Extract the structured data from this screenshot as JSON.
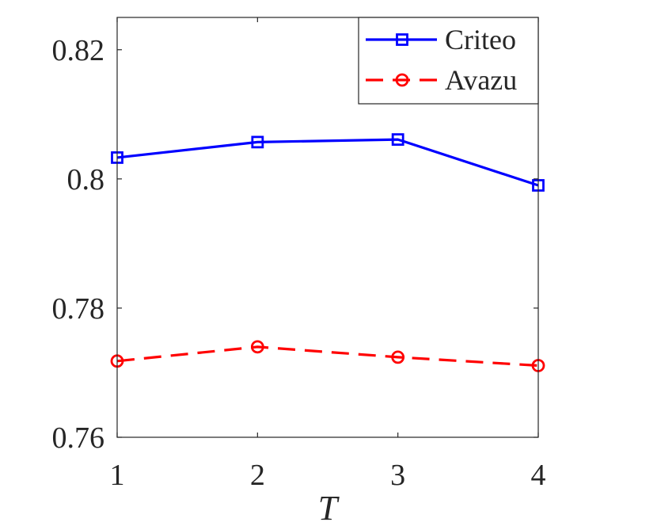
{
  "chart_data": {
    "type": "line",
    "title": "",
    "xlabel": "T",
    "ylabel": "",
    "x": [
      1,
      2,
      3,
      4
    ],
    "xticks": [
      "1",
      "2",
      "3",
      "4"
    ],
    "xlim": [
      1,
      4
    ],
    "yticks": [
      "0.76",
      "0.78",
      "0.8",
      "0.82"
    ],
    "ylim": [
      0.76,
      0.825
    ],
    "grid": false,
    "legend_position": "top-right",
    "series": [
      {
        "name": "Criteo",
        "values": [
          0.8033,
          0.8057,
          0.8061,
          0.799
        ],
        "color": "#0000ff",
        "line_style": "solid",
        "marker": "square"
      },
      {
        "name": "Avazu",
        "values": [
          0.7718,
          0.774,
          0.7724,
          0.7711
        ],
        "color": "#ff0000",
        "line_style": "dashed",
        "marker": "circle"
      }
    ]
  }
}
